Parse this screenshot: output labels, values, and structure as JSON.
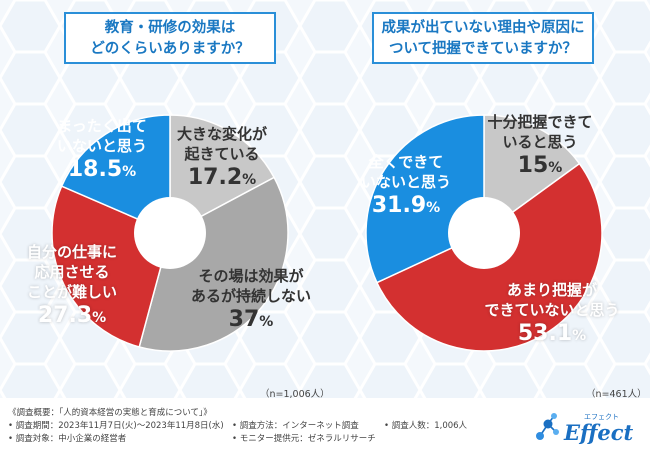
{
  "chart_data": [
    {
      "type": "pie",
      "title_lines": [
        "教育・研修の効果は",
        "どのくらいありますか？"
      ],
      "n_label": "（n=1,006人）",
      "slices": [
        {
          "label_lines": [
            "大きな変化が",
            "起きている"
          ],
          "value": 17.2,
          "color": "#c8c8c8"
        },
        {
          "label_lines": [
            "その場は効果が",
            "あるが持続しない"
          ],
          "value": 37.0,
          "color": "#a8a8a8"
        },
        {
          "label_lines": [
            "自分の仕事に",
            "応用させる",
            "ことが難しい"
          ],
          "value": 27.3,
          "color": "#d33030"
        },
        {
          "label_lines": [
            "まったく出て",
            "いないと思う"
          ],
          "value": 18.5,
          "color": "#1a8ee0"
        }
      ]
    },
    {
      "type": "pie",
      "title_lines": [
        "成果が出ていない理由や原因に",
        "ついて把握できていますか？"
      ],
      "n_label": "（n=461人）",
      "slices": [
        {
          "label_lines": [
            "十分把握できて",
            "いると思う"
          ],
          "value": 15.0,
          "color": "#c8c8c8"
        },
        {
          "label_lines": [
            "あまり把握が",
            "できていないと思う"
          ],
          "value": 53.1,
          "color": "#d33030"
        },
        {
          "label_lines": [
            "全くできて",
            "いないと思う"
          ],
          "value": 31.9,
          "color": "#1a8ee0"
        }
      ]
    }
  ],
  "value_suffix": "%",
  "footer": {
    "survey_outline": "《調査概要：「人的資本経営の実態と育成について」》",
    "period": "• 調査期間：2023年11月7日(火)〜2023年11月8日(水)",
    "target": "• 調査対象：中小企業の経営者",
    "method": "• 調査方法：インターネット調査",
    "provider": "• モニター提供元：ゼネラルリサーチ",
    "respondents": "• 調査人数：1,006人"
  },
  "logo": {
    "kana": "エフェクト",
    "text": "Effect",
    "color": "#1a6fc2"
  }
}
